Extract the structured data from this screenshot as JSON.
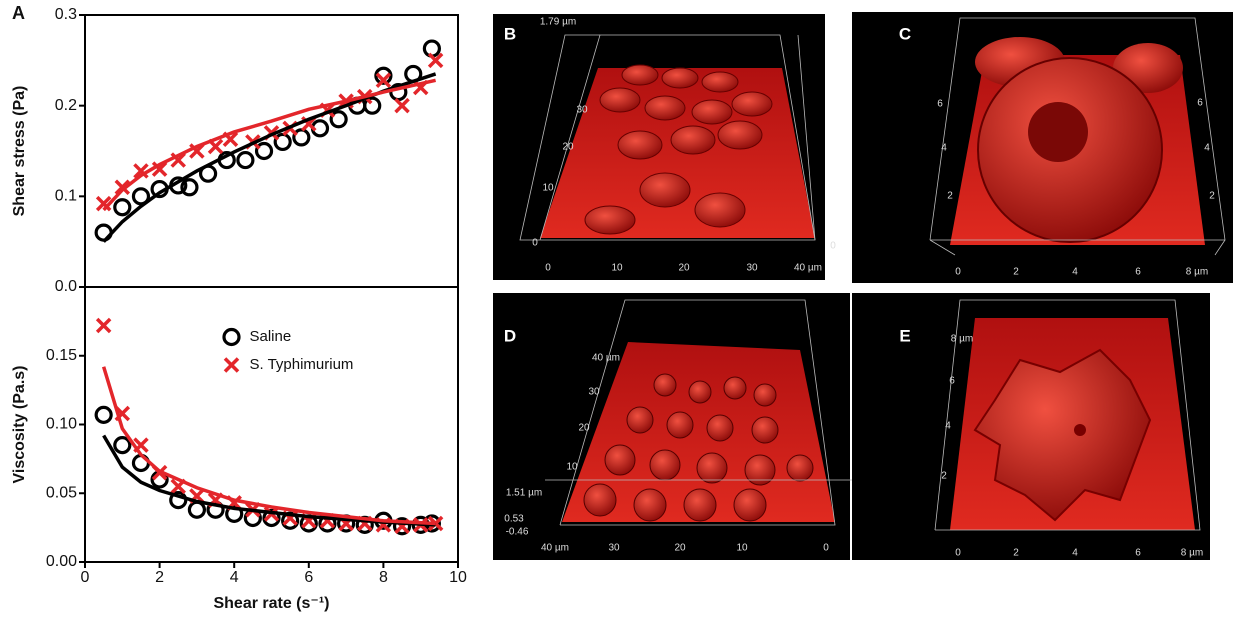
{
  "chart_data": [
    {
      "type": "scatter",
      "panel": "A",
      "ylabel": "Shear stress (Pa)",
      "xlim": [
        0,
        10
      ],
      "ylim": [
        0,
        0.3
      ],
      "yticks": [
        {
          "value": 0,
          "label": "0.0"
        },
        0.1,
        0.2,
        0.3
      ],
      "series": [
        {
          "name": "Saline",
          "color": "#000000",
          "marker": "circle",
          "x": [
            0.5,
            1.0,
            1.5,
            2.0,
            2.5,
            2.8,
            3.3,
            3.8,
            4.3,
            4.8,
            5.3,
            5.8,
            6.3,
            6.8,
            7.3,
            7.7,
            8.0,
            8.4,
            8.8,
            9.3
          ],
          "values": [
            0.06,
            0.088,
            0.1,
            0.108,
            0.112,
            0.11,
            0.125,
            0.14,
            0.14,
            0.15,
            0.16,
            0.165,
            0.175,
            0.185,
            0.2,
            0.2,
            0.233,
            0.215,
            0.235,
            0.263
          ]
        },
        {
          "name": "S. Typhimurium",
          "color": "#e3262b",
          "marker": "x",
          "x": [
            0.5,
            1.0,
            1.5,
            2.0,
            2.5,
            3.0,
            3.5,
            3.9,
            4.5,
            5.0,
            5.5,
            6.0,
            6.5,
            7.0,
            7.5,
            8.0,
            8.5,
            9.0,
            9.4
          ],
          "values": [
            0.092,
            0.11,
            0.128,
            0.13,
            0.14,
            0.15,
            0.155,
            0.163,
            0.16,
            0.17,
            0.175,
            0.18,
            0.195,
            0.205,
            0.21,
            0.228,
            0.2,
            0.22,
            0.25
          ]
        },
        {
          "color": "#000000",
          "style": "line",
          "x": [
            0.5,
            1,
            1.5,
            2,
            3,
            4,
            5,
            6,
            7,
            8,
            9.4
          ],
          "values": [
            0.05,
            0.072,
            0.089,
            0.104,
            0.128,
            0.149,
            0.168,
            0.185,
            0.2,
            0.216,
            0.235
          ]
        },
        {
          "color": "#e3262b",
          "style": "line",
          "x": [
            0.5,
            1,
            1.5,
            2,
            3,
            4,
            5,
            6,
            7,
            8,
            9.4
          ],
          "values": [
            0.085,
            0.107,
            0.123,
            0.135,
            0.155,
            0.171,
            0.183,
            0.196,
            0.205,
            0.215,
            0.228
          ]
        }
      ]
    },
    {
      "type": "scatter",
      "ylabel": "Viscosity (Pa.s)",
      "xlabel": "Shear rate (s⁻¹)",
      "xlim": [
        0,
        10
      ],
      "xticks": [
        0,
        2,
        4,
        6,
        8,
        10
      ],
      "ylim": [
        0,
        0.2
      ],
      "yticks": [
        {
          "value": 0,
          "label": "0.00"
        },
        0.05,
        {
          "value": 0.1,
          "label": "0.10"
        },
        0.15
      ],
      "legend": "upper center",
      "series": [
        {
          "name": "Saline",
          "color": "#000000",
          "marker": "circle",
          "x": [
            0.5,
            1.0,
            1.5,
            2.0,
            2.5,
            3.0,
            3.5,
            4.0,
            4.5,
            5.0,
            5.5,
            6.0,
            6.5,
            7.0,
            7.5,
            8.0,
            8.5,
            9.0,
            9.3
          ],
          "values": [
            0.107,
            0.085,
            0.072,
            0.06,
            0.045,
            0.038,
            0.038,
            0.035,
            0.032,
            0.032,
            0.03,
            0.028,
            0.028,
            0.028,
            0.027,
            0.03,
            0.026,
            0.027,
            0.028
          ]
        },
        {
          "name": "S. Typhimurium",
          "color": "#e3262b",
          "marker": "x",
          "x": [
            0.5,
            1.0,
            1.5,
            2.0,
            2.5,
            3.0,
            3.5,
            4.0,
            4.5,
            5.0,
            5.5,
            6.0,
            6.5,
            7.0,
            7.5,
            8.0,
            8.5,
            9.0,
            9.4
          ],
          "values": [
            0.172,
            0.108,
            0.085,
            0.065,
            0.055,
            0.048,
            0.045,
            0.043,
            0.038,
            0.035,
            0.032,
            0.03,
            0.03,
            0.028,
            0.028,
            0.027,
            0.026,
            0.027,
            0.028
          ]
        },
        {
          "color": "#000000",
          "style": "line",
          "x": [
            0.5,
            1,
            1.5,
            2,
            3,
            4,
            5,
            6,
            7,
            8,
            9.4
          ],
          "values": [
            0.092,
            0.069,
            0.058,
            0.052,
            0.044,
            0.039,
            0.036,
            0.033,
            0.031,
            0.029,
            0.027
          ]
        },
        {
          "color": "#e3262b",
          "style": "line",
          "x": [
            0.5,
            1,
            1.5,
            2,
            3,
            4,
            5,
            6,
            7,
            8,
            9.4
          ],
          "values": [
            0.142,
            0.097,
            0.078,
            0.066,
            0.054,
            0.045,
            0.04,
            0.036,
            0.033,
            0.03,
            0.028
          ]
        }
      ]
    }
  ],
  "images": [
    {
      "panel": "B",
      "labels": [
        "1.79 µm",
        "0",
        "0",
        "10",
        "20",
        "30",
        "40 µm",
        "10",
        "20",
        "30",
        "0"
      ]
    },
    {
      "panel": "C",
      "labels": [
        "0",
        "2",
        "4",
        "6",
        "8 µm",
        "2",
        "4",
        "6",
        "2",
        "4",
        "6"
      ]
    },
    {
      "panel": "D",
      "labels": [
        "1.51 µm",
        "0.53",
        "-0.46",
        "40 µm",
        "30",
        "20",
        "10",
        "0",
        "10",
        "20",
        "30",
        "40 µm"
      ]
    },
    {
      "panel": "E",
      "labels": [
        "0",
        "2",
        "4",
        "6",
        "8 µm",
        "2",
        "4",
        "6",
        "8 µm"
      ]
    }
  ]
}
